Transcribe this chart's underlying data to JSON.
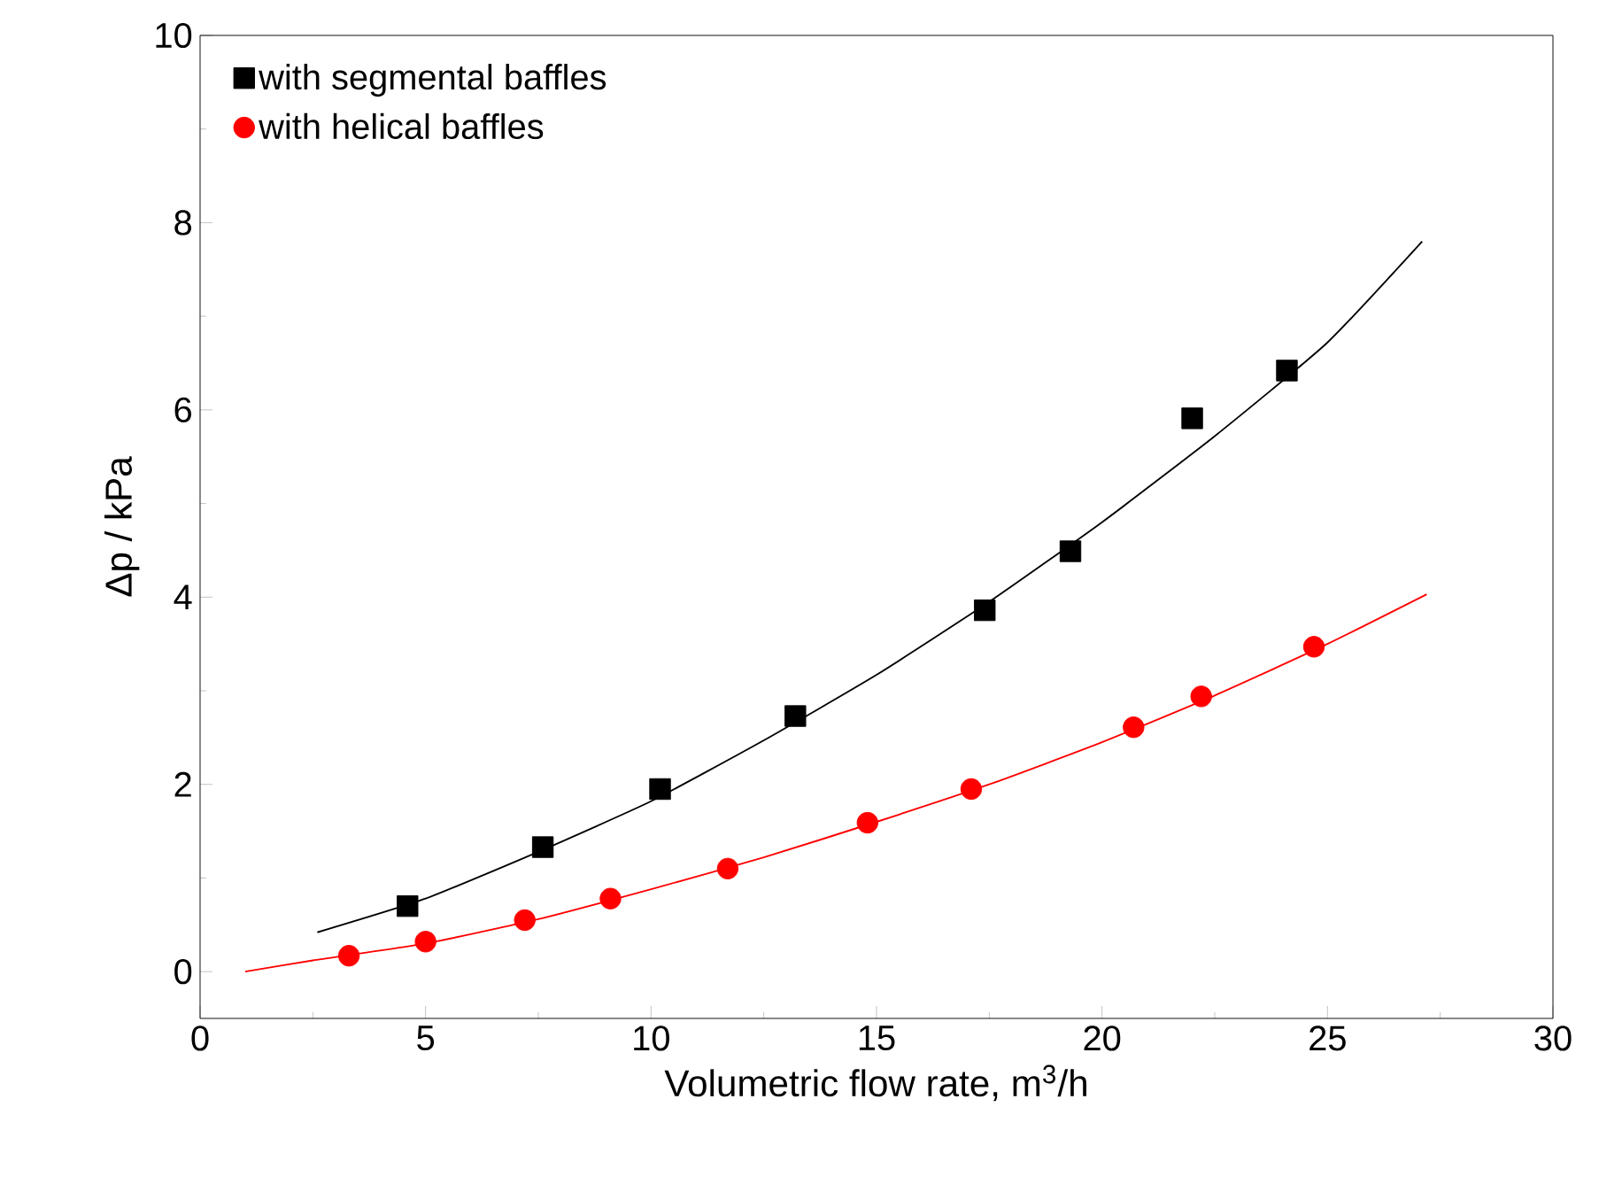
{
  "chart_data": {
    "type": "scatter",
    "xlabel": "Volumetric flow rate, m$^{3}$/h",
    "ylabel": "Δp / kPa",
    "xlim": [
      0,
      30
    ],
    "ylim": [
      -0.5,
      10
    ],
    "xticks": [
      0,
      5,
      10,
      15,
      20,
      25,
      30
    ],
    "yticks": [
      0,
      2,
      4,
      6,
      8,
      10
    ],
    "grid": false,
    "legend": "top left",
    "series": [
      {
        "name": "with segmental baffles",
        "color": "#000000",
        "marker": "square",
        "x": [
          4.6,
          7.6,
          10.2,
          13.2,
          17.4,
          19.3,
          22.0,
          24.1
        ],
        "values": [
          0.7,
          1.33,
          1.95,
          2.73,
          3.86,
          4.49,
          5.91,
          6.42
        ]
      },
      {
        "name": "with helical baffles",
        "color": "#ff0000",
        "marker": "circle",
        "x": [
          3.3,
          5.0,
          7.2,
          9.1,
          11.7,
          14.8,
          17.1,
          20.7,
          22.2,
          24.7
        ],
        "values": [
          0.17,
          0.32,
          0.55,
          0.78,
          1.1,
          1.59,
          1.95,
          2.61,
          2.94,
          3.47
        ]
      },
      {
        "type": "line",
        "color": "#000000",
        "x": [
          2.6,
          5,
          7.5,
          10,
          12.5,
          15,
          17.5,
          20,
          22.5,
          25,
          27.1
        ],
        "values": [
          0.42,
          0.78,
          1.28,
          1.82,
          2.47,
          3.17,
          3.95,
          4.8,
          5.72,
          6.72,
          7.8
        ]
      },
      {
        "type": "line",
        "color": "#ff0000",
        "x": [
          1.0,
          2.5,
          5,
          7.5,
          10,
          12.5,
          15,
          17.5,
          20,
          22.5,
          25,
          27.2
        ],
        "values": [
          0.0,
          0.12,
          0.3,
          0.56,
          0.88,
          1.22,
          1.6,
          2.0,
          2.45,
          2.95,
          3.5,
          4.03
        ]
      }
    ]
  }
}
